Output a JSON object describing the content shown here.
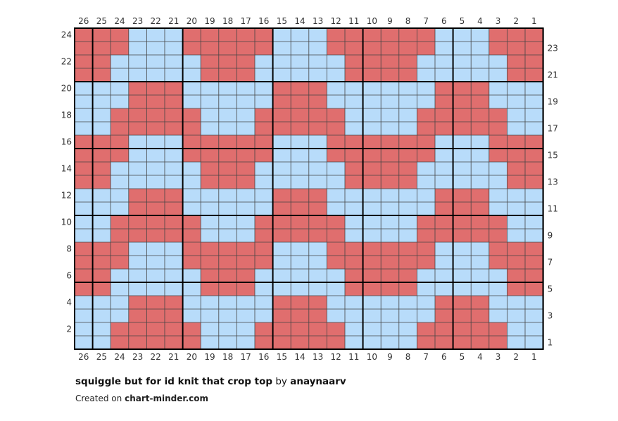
{
  "chart_data": {
    "type": "heatmap",
    "title": "squiggle but for id knit that crop top",
    "columns": 26,
    "rows": 24,
    "column_labels_right_to_left": [
      26,
      25,
      24,
      23,
      22,
      21,
      20,
      19,
      18,
      17,
      16,
      15,
      14,
      13,
      12,
      11,
      10,
      9,
      8,
      7,
      6,
      5,
      4,
      3,
      2,
      1
    ],
    "left_row_labels": [
      2,
      4,
      6,
      8,
      10,
      12,
      14,
      16,
      18,
      20,
      22,
      24
    ],
    "right_row_labels": [
      1,
      3,
      5,
      7,
      9,
      11,
      13,
      15,
      17,
      19,
      21,
      23
    ],
    "colors": {
      "R": "#e06e6e",
      "B": "#b8dcfa"
    },
    "grid": true,
    "thick_line_every": 5,
    "rows_top_to_bottom": [
      "RRRBBBRRRRRBBBRRRRRRBBBRRR",
      "RRRBBBRRRRRBBBRRRRRRBBBRRR",
      "RRBBBBBRRRBBBBBRRRRBBBBBRR",
      "RRBBBBBRRRBBBBBRRRRBBBBBRR",
      "BBBRRRBBBBBRRRBBBBBBRRRBBB",
      "BBBRRRBBBBBRRRBBBBBBRRRBBB",
      "BBRRRRRBBBRRRRRBBBBRRRRRBB",
      "BBRRRRRBBBRRRRRBBBBRRRRRBB",
      "RRRBBBRRRRRBBBRRRRRRBBBRRR",
      "RRRBBBRRRRRBBBRRRRRRBBBRRR",
      "RRBBBBBRRRBBBBBRRRRBBBBBRR",
      "RRBBBBBRRRBBBBBRRRRBBBBBRR",
      "BBBRRRBBBBBRRRBBBBBBRRRBBB",
      "BBBRRRBBBBBRRRBBBBBBRRRBBB",
      "BBRRRRRBBBRRRRRBBBBRRRRRBB",
      "BBRRRRRBBBRRRRRBBBBRRRRRBB",
      "RRRBBBRRRRRBBBRRRRRRBBBRRR",
      "RRRBBBRRRRRBBBRRRRRRBBBRRR",
      "RRBBBBBRRRBBBBBRRRRBBBBBRR",
      "RRBBBBBRRRBBBBBRRRRBBBBBRR",
      "BBBRRRBBBBBRRRBBBBBBRRRBBB",
      "BBBRRRBBBBBRRRBBBBBBRRRBBB",
      "BBRRRRRBBBRRRRRBBBBRRRRRBB",
      "BBRRRRRBBBRRRRRBBBBRRRRRBB"
    ]
  },
  "caption": {
    "title": "squiggle but for id knit that crop top",
    "by": "by",
    "author": "anaynaarv"
  },
  "credit": {
    "prefix": "Created on",
    "site": "chart-minder.com"
  }
}
